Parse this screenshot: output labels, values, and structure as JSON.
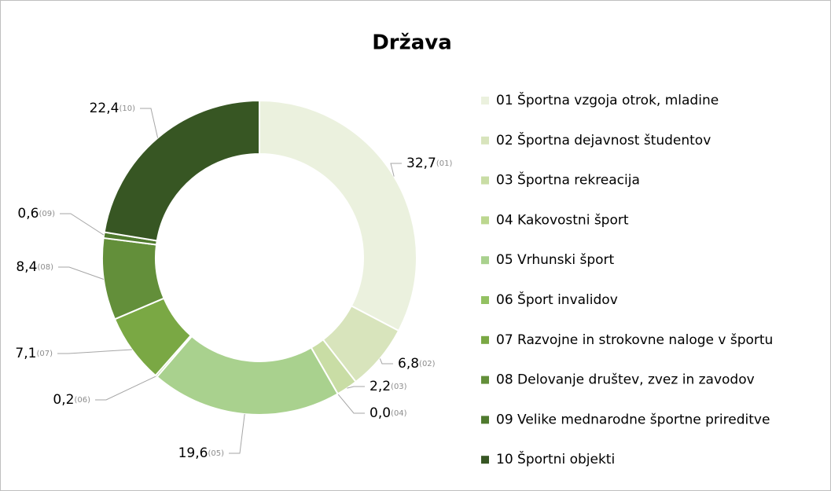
{
  "chart_data": {
    "type": "donut",
    "title": "Država",
    "categories": [
      "01 Športna vzgoja otrok, mladine",
      "02 Športna dejavnost študentov",
      "03 Športna rekreacija",
      "04 Kakovostni šport",
      "05 Vrhunski šport",
      "06 Šport invalidov",
      "07 Razvojne in strokovne naloge v športu",
      "08 Delovanje društev, zvez in zavodov",
      "09 Velike mednarodne športne prireditve",
      "10 Športni objekti"
    ],
    "values": [
      32.7,
      6.8,
      2.2,
      0.0,
      19.6,
      0.2,
      7.1,
      8.4,
      0.6,
      22.4
    ],
    "value_labels": [
      "32,7",
      "6,8",
      "2,2",
      "0,0",
      "19,6",
      "0,2",
      "7,1",
      "8,4",
      "0,6",
      "22,4"
    ],
    "value_label_codes": [
      "(01)",
      "(02)",
      "(03)",
      "(04)",
      "(05)",
      "(06)",
      "(07)",
      "(08)",
      "(09)",
      "(10)"
    ],
    "colors": [
      "#ebf1de",
      "#d8e4bc",
      "#c9dda5",
      "#bcd78f",
      "#a9d18e",
      "#93c162",
      "#7aa844",
      "#638f3a",
      "#4f7a2e",
      "#375623"
    ],
    "legend": "right"
  }
}
